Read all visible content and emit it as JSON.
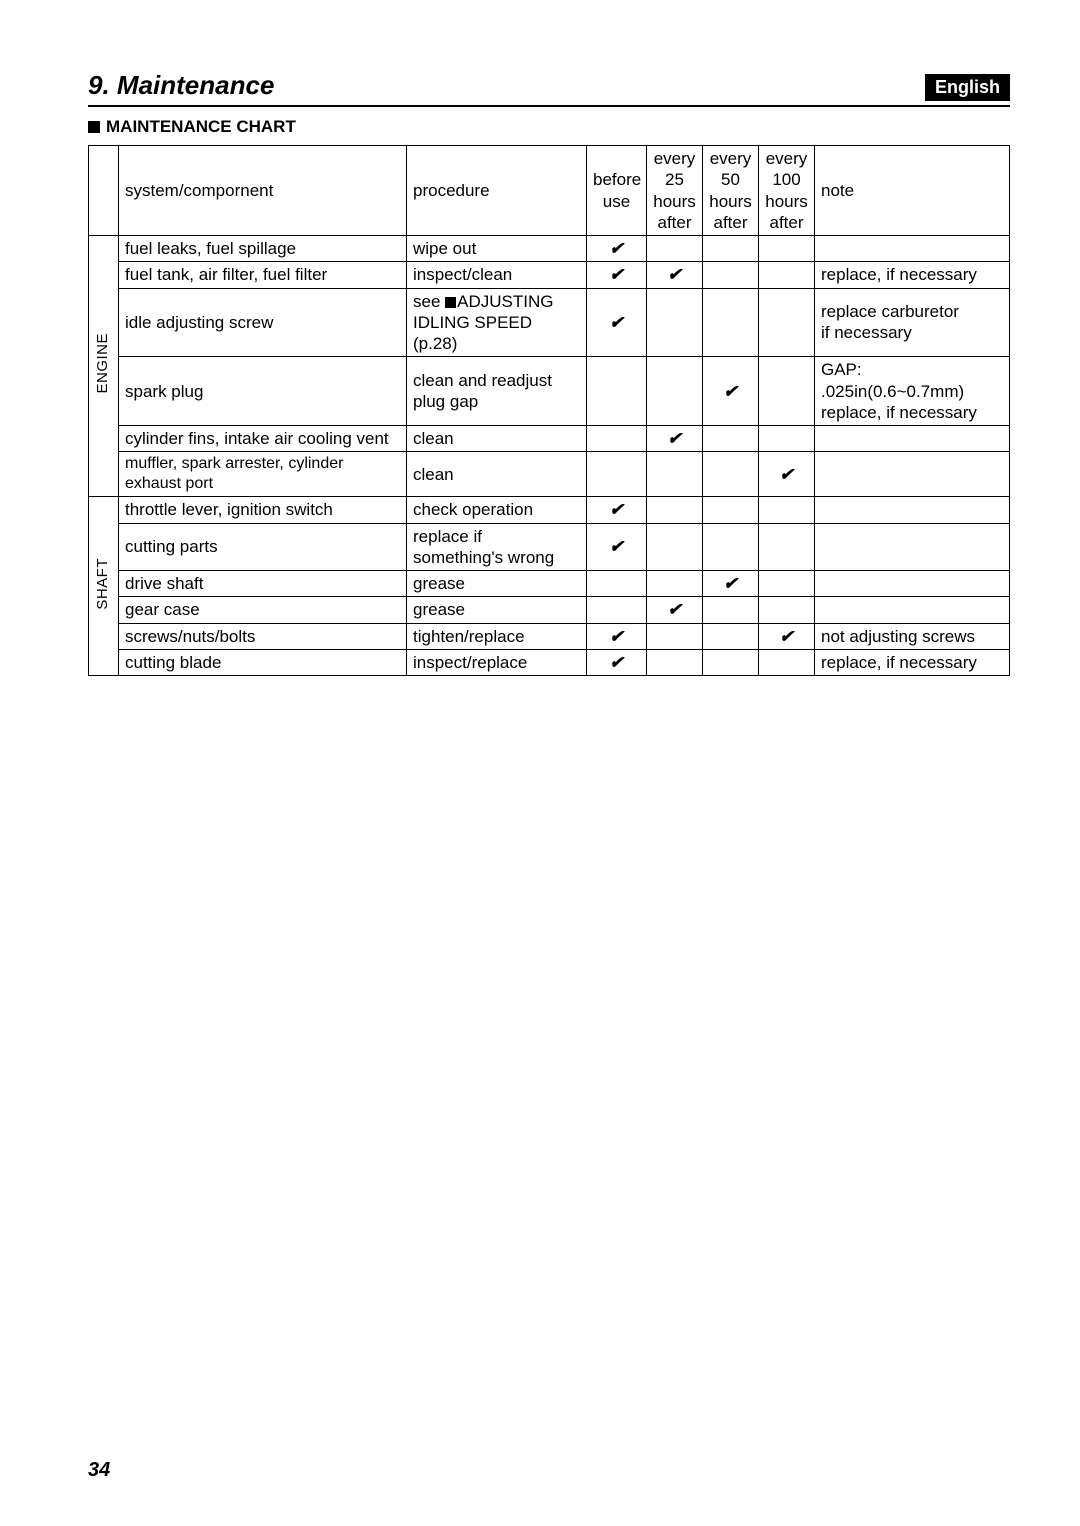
{
  "section_number": "9.",
  "section_title": "Maintenance",
  "language_badge": "English",
  "sub_heading": "MAINTENANCE CHART",
  "page_number": "34",
  "check_mark": "✔",
  "headers": {
    "system": "system/compornent",
    "procedure": "procedure",
    "before": "before\nuse",
    "h25": "every\n25\nhours\nafter",
    "h50": "every\n50\nhours\nafter",
    "h100": "every\n100\nhours\nafter",
    "note": "note"
  },
  "categories": {
    "engine": "ENGINE",
    "shaft": "SHAFT"
  },
  "rows": {
    "r1": {
      "sys": "fuel leaks, fuel spillage",
      "proc": "wipe out",
      "b": true,
      "h25": false,
      "h50": false,
      "h100": false,
      "note": ""
    },
    "r2": {
      "sys": "fuel tank, air filter, fuel filter",
      "proc": "inspect/clean",
      "b": true,
      "h25": true,
      "h50": false,
      "h100": false,
      "note": "replace, if necessary"
    },
    "r3": {
      "sys": "idle adjusting screw",
      "proc_prefix": "see ",
      "proc_a": "ADJUSTING",
      "proc_b": "IDLING SPEED (p.28)",
      "b": true,
      "h25": false,
      "h50": false,
      "h100": false,
      "note": "replace carburetor\nif necessary"
    },
    "r4": {
      "sys": "spark plug",
      "proc": "clean and readjust\nplug gap",
      "b": false,
      "h25": false,
      "h50": true,
      "h100": false,
      "note": "GAP: .025in(0.6~0.7mm)\nreplace, if necessary"
    },
    "r5": {
      "sys": "cylinder fins, intake air cooling vent",
      "proc": "clean",
      "b": false,
      "h25": true,
      "h50": false,
      "h100": false,
      "note": ""
    },
    "r6": {
      "sys": "muffler, spark arrester, cylinder exhaust port",
      "proc": "clean",
      "b": false,
      "h25": false,
      "h50": false,
      "h100": true,
      "note": ""
    },
    "r7": {
      "sys": "throttle lever, ignition switch",
      "proc": "check operation",
      "b": true,
      "h25": false,
      "h50": false,
      "h100": false,
      "note": ""
    },
    "r8": {
      "sys": "cutting parts",
      "proc": "replace if\nsomething's wrong",
      "b": true,
      "h25": false,
      "h50": false,
      "h100": false,
      "note": ""
    },
    "r9": {
      "sys": "drive shaft",
      "proc": "grease",
      "b": false,
      "h25": false,
      "h50": true,
      "h100": false,
      "note": ""
    },
    "r10": {
      "sys": "gear case",
      "proc": "grease",
      "b": false,
      "h25": true,
      "h50": false,
      "h100": false,
      "note": ""
    },
    "r11": {
      "sys": "screws/nuts/bolts",
      "proc": "tighten/replace",
      "b": true,
      "h25": false,
      "h50": false,
      "h100": true,
      "note": "not adjusting screws"
    },
    "r12": {
      "sys": "cutting blade",
      "proc": "inspect/replace",
      "b": true,
      "h25": false,
      "h50": false,
      "h100": false,
      "note": "replace, if necessary"
    }
  }
}
